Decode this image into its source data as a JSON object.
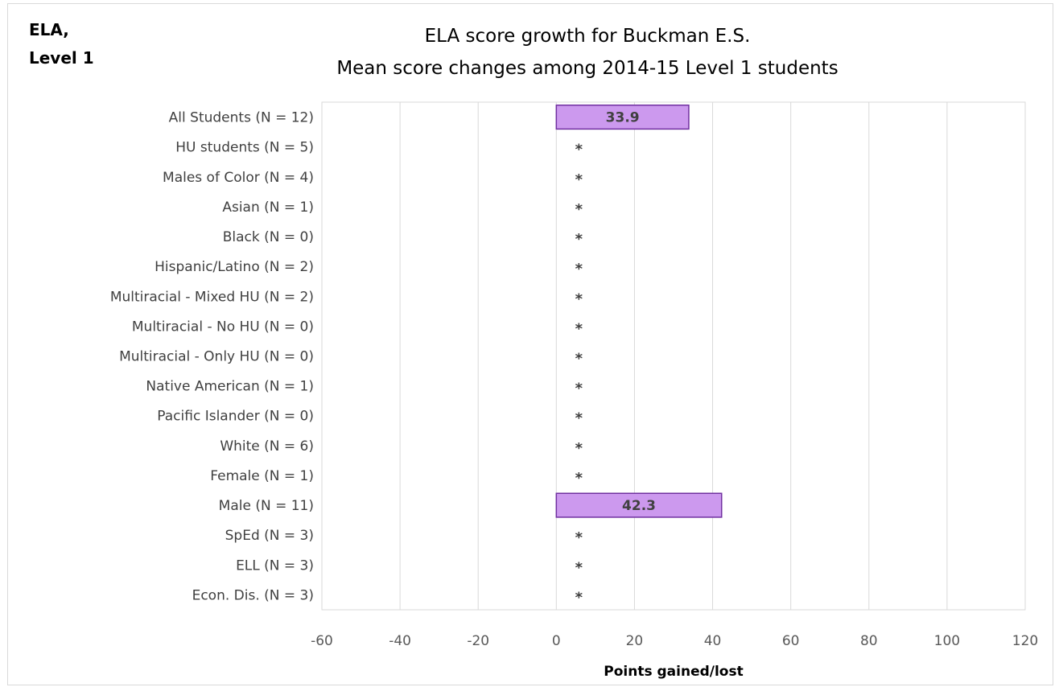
{
  "corner_label": {
    "line1": "ELA,",
    "line2": "Level 1"
  },
  "chart_data": {
    "type": "bar",
    "orientation": "horizontal",
    "title": "ELA score growth for Buckman E.S.",
    "subtitle": "Mean score changes among 2014-15 Level 1 students",
    "xlabel": "Points gained/lost",
    "ylabel": "",
    "xlim": [
      -60,
      120
    ],
    "x_ticks": [
      -60,
      -40,
      -20,
      0,
      20,
      40,
      60,
      80,
      100,
      120
    ],
    "grid": "vertical",
    "legend": "none",
    "suppressed_marker": "*",
    "bar_color": "#cc99ee",
    "bar_border_color": "#7030a0",
    "categories": [
      "All Students (N = 12)",
      "HU students (N = 5)",
      "Males of Color (N = 4)",
      "Asian (N = 1)",
      "Black (N = 0)",
      "Hispanic/Latino (N = 2)",
      "Multiracial - Mixed HU (N = 2)",
      "Multiracial - No HU (N = 0)",
      "Multiracial - Only HU (N = 0)",
      "Native American (N = 1)",
      "Pacific Islander (N = 0)",
      "White (N = 6)",
      "Female (N = 1)",
      "Male (N = 11)",
      "SpEd (N = 3)",
      "ELL (N = 3)",
      "Econ. Dis. (N = 3)"
    ],
    "values": [
      33.9,
      null,
      null,
      null,
      null,
      null,
      null,
      null,
      null,
      null,
      null,
      null,
      null,
      42.3,
      null,
      null,
      null
    ],
    "data_labels": [
      "33.9",
      "*",
      "*",
      "*",
      "*",
      "*",
      "*",
      "*",
      "*",
      "*",
      "*",
      "*",
      "*",
      "42.3",
      "*",
      "*",
      "*"
    ]
  }
}
